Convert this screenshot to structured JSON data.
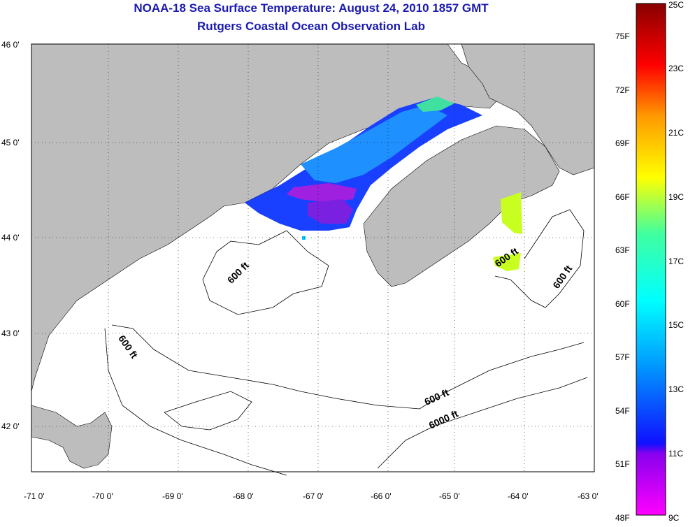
{
  "title": "NOAA-18 Sea Surface Temperature:  August 24, 2010 1857 GMT",
  "subtitle": "Rutgers Coastal Ocean Observation Lab",
  "x_ticks": [
    "-71 0'",
    "-70 0'",
    "-69 0'",
    "-68 0'",
    "-67 0'",
    "-66 0'",
    "-65 0'",
    "-64 0'",
    "-63 0'"
  ],
  "y_ticks": [
    "46 0'",
    "45 0'",
    "44 0'",
    "43 0'",
    "42 0'"
  ],
  "contour_labels": [
    "600 ft",
    "600 ft",
    "600 ft",
    "600 ft",
    "6000 ft"
  ],
  "colorbar": {
    "fahrenheit": [
      "75F",
      "72F",
      "69F",
      "66F",
      "63F",
      "60F",
      "57F",
      "54F",
      "51F",
      "48F"
    ],
    "celsius": [
      "25C",
      "23C",
      "21C",
      "19C",
      "17C",
      "15C",
      "13C",
      "11C",
      "9C"
    ]
  },
  "colors": {
    "land": "#bdbdbd",
    "title": "#1a1ab0"
  }
}
